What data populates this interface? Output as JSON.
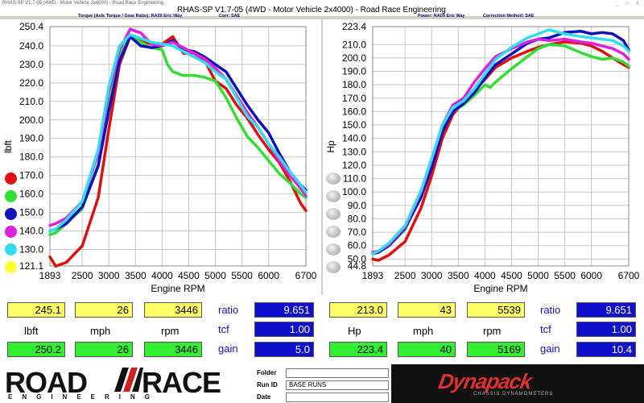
{
  "window": {
    "title_small": "RHAS-SP V1.7-05 (4WD - Motor Vehicle 2x4000) - Road Race Engineering",
    "title": "RHAS-SP V1.7-05   (4WD - Motor Vehicle 2x4000) - Road Race Engineering",
    "controls": [
      "_",
      "□",
      "X"
    ]
  },
  "torque_header": {
    "title": "Torque (Axle Torque / Gear Ratio): RA09 Eric Way",
    "corr": "Corr: SAE"
  },
  "power_header": {
    "title": "Power: RA09 Eric Way",
    "corr": "Correction Method: SAE"
  },
  "series_colors": [
    "#dd1111",
    "#33dd33",
    "#1111bb",
    "#dd22dd",
    "#33ddee",
    "#ffff33"
  ],
  "chart_data": [
    {
      "type": "line",
      "ylabel": "lbft",
      "xlabel": "Engine RPM",
      "xlim": [
        1893,
        6700
      ],
      "ylim": [
        121.1,
        250.4
      ],
      "x_ticks": [
        "1893",
        "2500",
        "3000",
        "3500",
        "4000",
        "4500",
        "5000",
        "5500",
        "6000",
        "6700"
      ],
      "y_ticks": [
        "250.4",
        "240.0",
        "230.0",
        "220.0",
        "210.0",
        "200.0",
        "190.0",
        "180.0",
        "170.0",
        "160.0",
        "150.0",
        "140.0",
        "130.0",
        "121.1"
      ],
      "x_tick_values": [
        1893,
        2500,
        3000,
        3500,
        4000,
        4500,
        5000,
        5500,
        6000,
        6700
      ],
      "y_tick_values": [
        250.4,
        240,
        230,
        220,
        210,
        200,
        190,
        180,
        170,
        160,
        150,
        140,
        130,
        121.1
      ],
      "series": [
        {
          "x": [
            1893,
            2000,
            2200,
            2500,
            2800,
            3000,
            3200,
            3400,
            3600,
            3800,
            4000,
            4200,
            4400,
            4600,
            4800,
            5000,
            5200,
            5400,
            5600,
            5800,
            6000,
            6200,
            6400,
            6600,
            6700
          ],
          "values": [
            126,
            121,
            123,
            132,
            158,
            195,
            230,
            245,
            243,
            241,
            241,
            245,
            236,
            236,
            232,
            221,
            217,
            208,
            201,
            192,
            184,
            177,
            167,
            155,
            151
          ]
        },
        {
          "x": [
            1893,
            2000,
            2200,
            2500,
            2800,
            3000,
            3200,
            3400,
            3600,
            3800,
            4000,
            4100,
            4200,
            4400,
            4600,
            4800,
            5000,
            5200,
            5400,
            5600,
            5800,
            6000,
            6200,
            6400,
            6600,
            6700
          ],
          "values": [
            138,
            139,
            144,
            152,
            176,
            207,
            235,
            245,
            242,
            239,
            238,
            230,
            226,
            224,
            224,
            223,
            221,
            212,
            201,
            191,
            185,
            178,
            171,
            166,
            160,
            158
          ]
        },
        {
          "x": [
            1893,
            2000,
            2200,
            2500,
            2800,
            3000,
            3200,
            3400,
            3600,
            3800,
            4000,
            4200,
            4400,
            4600,
            4800,
            5000,
            5200,
            5400,
            5600,
            5800,
            6000,
            6200,
            6400,
            6600,
            6700
          ],
          "values": [
            140,
            141,
            144,
            153,
            175,
            205,
            232,
            245,
            240,
            239,
            240,
            243,
            238,
            237,
            234,
            230,
            226,
            217,
            208,
            200,
            193,
            182,
            172,
            165,
            162
          ]
        },
        {
          "x": [
            1893,
            2000,
            2200,
            2500,
            2800,
            3000,
            3200,
            3400,
            3600,
            3800,
            4000,
            4200,
            4400,
            4600,
            4800,
            5000,
            5200,
            5400,
            5600,
            5800,
            6000,
            6200,
            6400,
            6600,
            6700
          ],
          "values": [
            143,
            144,
            147,
            156,
            182,
            215,
            238,
            249,
            247,
            241,
            240,
            242,
            239,
            236,
            233,
            228,
            222,
            213,
            204,
            196,
            187,
            178,
            170,
            163,
            159
          ]
        },
        {
          "x": [
            1893,
            2000,
            2200,
            2500,
            2800,
            3000,
            3200,
            3400,
            3600,
            3800,
            4000,
            4200,
            4400,
            4600,
            4800,
            5000,
            5200,
            5400,
            5600,
            5800,
            6000,
            6200,
            6400,
            6600,
            6700
          ],
          "values": [
            140,
            141,
            146,
            156,
            184,
            218,
            240,
            246,
            244,
            242,
            241,
            240,
            237,
            234,
            231,
            226,
            222,
            212,
            202,
            196,
            187,
            180,
            172,
            165,
            161
          ]
        }
      ]
    },
    {
      "type": "line",
      "ylabel": "Hp",
      "xlabel": "Engine RPM",
      "xlim": [
        1893,
        6700
      ],
      "ylim": [
        44.8,
        223.4
      ],
      "x_ticks": [
        "1893",
        "2500",
        "3000",
        "3500",
        "4000",
        "4500",
        "5000",
        "5500",
        "6000",
        "6700"
      ],
      "y_ticks": [
        "223.4",
        "210.0",
        "200.0",
        "190.0",
        "180.0",
        "170.0",
        "160.0",
        "150.0",
        "140.0",
        "130.0",
        "120.0",
        "110.0",
        "100.0",
        "90.0",
        "80.0",
        "70.0",
        "60.0",
        "50.0",
        "44.8"
      ],
      "x_tick_values": [
        1893,
        2500,
        3000,
        3500,
        4000,
        4500,
        5000,
        5500,
        6000,
        6700
      ],
      "y_tick_values": [
        223.4,
        210,
        200,
        190,
        180,
        170,
        160,
        150,
        140,
        130,
        120,
        110,
        100,
        90,
        80,
        70,
        60,
        50,
        44.8
      ],
      "series": [
        {
          "x": [
            1893,
            2000,
            2200,
            2500,
            2800,
            3000,
            3200,
            3400,
            3600,
            3800,
            4000,
            4200,
            4500,
            4800,
            5000,
            5200,
            5500,
            5800,
            6000,
            6200,
            6400,
            6600,
            6700
          ],
          "values": [
            50,
            49,
            53,
            63,
            88,
            112,
            140,
            158,
            167,
            176,
            184,
            193,
            200,
            205,
            208,
            210,
            212,
            211,
            209,
            205,
            200,
            195,
            193
          ]
        },
        {
          "x": [
            1893,
            2000,
            2200,
            2500,
            2800,
            3000,
            3200,
            3400,
            3600,
            3800,
            4000,
            4100,
            4200,
            4500,
            4800,
            5000,
            5200,
            5500,
            5800,
            6000,
            6200,
            6400,
            6600,
            6700
          ],
          "values": [
            54,
            55,
            60,
            72,
            98,
            120,
            147,
            160,
            165,
            172,
            180,
            178,
            182,
            192,
            201,
            207,
            210,
            209,
            204,
            201,
            199,
            200,
            197,
            194
          ]
        },
        {
          "x": [
            1893,
            2000,
            2200,
            2500,
            2800,
            3000,
            3200,
            3400,
            3600,
            3800,
            4000,
            4200,
            4500,
            4800,
            5000,
            5200,
            5500,
            5800,
            6000,
            6200,
            6400,
            6600,
            6700
          ],
          "values": [
            54,
            55,
            60,
            73,
            96,
            118,
            145,
            160,
            166,
            174,
            185,
            195,
            203,
            211,
            214,
            215,
            219,
            220,
            218,
            219,
            218,
            213,
            206
          ]
        },
        {
          "x": [
            1893,
            2000,
            2200,
            2500,
            2800,
            3000,
            3200,
            3400,
            3600,
            3800,
            4000,
            4200,
            4500,
            4800,
            5000,
            5200,
            5500,
            5800,
            6000,
            6200,
            6400,
            6600,
            6700
          ],
          "values": [
            55,
            56,
            61,
            74,
            100,
            124,
            150,
            165,
            170,
            182,
            192,
            201,
            207,
            212,
            214,
            213,
            214,
            212,
            211,
            209,
            207,
            203,
            199
          ]
        },
        {
          "x": [
            1893,
            2000,
            2200,
            2500,
            2800,
            3000,
            3200,
            3400,
            3600,
            3800,
            4000,
            4200,
            4500,
            4800,
            5000,
            5200,
            5500,
            5800,
            6000,
            6200,
            6400,
            6600,
            6700
          ],
          "values": [
            54,
            56,
            62,
            75,
            101,
            125,
            150,
            163,
            168,
            177,
            188,
            199,
            208,
            215,
            218,
            221,
            218,
            216,
            215,
            214,
            213,
            209,
            205
          ]
        }
      ]
    }
  ],
  "torque_readout": {
    "top": [
      "245.1",
      "26",
      "3446"
    ],
    "labels": [
      "lbft",
      "mph",
      "rpm"
    ],
    "bottom": [
      "250.2",
      "26",
      "3446"
    ],
    "side_labels": [
      "ratio",
      "tcf",
      "gain"
    ],
    "side_values": [
      "9.651",
      "1.00",
      "5.0"
    ]
  },
  "power_readout": {
    "top": [
      "213.0",
      "43",
      "5539"
    ],
    "labels": [
      "Hp",
      "mph",
      "rpm"
    ],
    "bottom": [
      "223.4",
      "40",
      "5169"
    ],
    "side_labels": [
      "ratio",
      "tcf",
      "gain"
    ],
    "side_values": [
      "9.651",
      "1.00",
      "10.4"
    ]
  },
  "footer": {
    "logo_left": "ROAD",
    "logo_right": "RACE",
    "logo_sub": "ENGINEERING",
    "folder_label": "Folder",
    "folder_value": "",
    "runid_label": "Run ID",
    "runid_value": "BASE RUNS",
    "date_label": "Date",
    "date_value": "",
    "brand": "Dynapack",
    "brand_sub": "CHASSIS DYNAMOMETERS"
  }
}
